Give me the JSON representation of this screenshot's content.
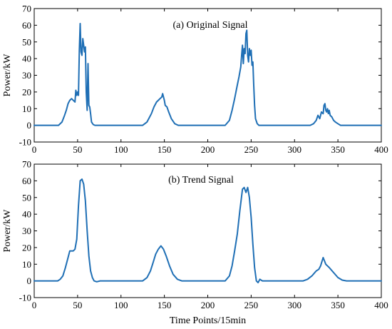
{
  "chart_data": [
    {
      "type": "line",
      "annotation": "(a) Original Signal",
      "xlabel": "",
      "ylabel": "Power/kW",
      "xlim": [
        0,
        400
      ],
      "ylim": [
        -10,
        70
      ],
      "xticks": [
        0,
        50,
        100,
        150,
        200,
        250,
        300,
        350,
        400
      ],
      "yticks": [
        -10,
        0,
        10,
        20,
        30,
        40,
        50,
        60,
        70
      ],
      "grid": false,
      "color": "#1f6fb5",
      "series": [
        {
          "x": [
            0,
            28,
            32,
            35,
            37,
            39,
            41,
            43,
            45,
            47,
            48,
            49,
            50,
            51,
            52,
            53,
            54,
            55,
            56,
            57,
            58,
            59,
            60,
            61,
            62,
            63,
            64,
            65,
            66,
            68,
            70,
            125,
            130,
            135,
            138,
            141,
            143,
            145,
            147,
            148,
            150,
            151,
            153,
            155,
            158,
            162,
            166,
            170,
            220,
            225,
            228,
            231,
            234,
            236,
            238,
            239,
            240,
            241,
            242,
            243,
            244,
            245,
            246,
            247,
            248,
            249,
            250,
            251,
            252,
            253,
            254,
            255,
            257,
            259,
            262,
            318,
            322,
            325,
            327,
            329,
            331,
            333,
            334,
            335,
            336,
            337,
            338,
            339,
            340,
            341,
            343,
            345,
            347,
            350,
            353,
            356,
            400
          ],
          "y": [
            0,
            0,
            2,
            6,
            9,
            13,
            15,
            16,
            15,
            14,
            21,
            18,
            20,
            18,
            45,
            61,
            44,
            42,
            52,
            48,
            44,
            47,
            20,
            9,
            37,
            12,
            11,
            7,
            2,
            0.5,
            0,
            0,
            2,
            7,
            11,
            14,
            15,
            16,
            17,
            19,
            15,
            12,
            11,
            8,
            4,
            1,
            0,
            0,
            0,
            3,
            9,
            16,
            24,
            29,
            35,
            42,
            48,
            37,
            46,
            43,
            55,
            57,
            42,
            38,
            46,
            42,
            45,
            36,
            38,
            24,
            12,
            4,
            1,
            0,
            0,
            0,
            1,
            3,
            6,
            4,
            8,
            7,
            12,
            13,
            9,
            8,
            10,
            7,
            9,
            6,
            5,
            3,
            2,
            1,
            0,
            0,
            0
          ]
        }
      ]
    },
    {
      "type": "line",
      "annotation": "(b) Trend Signal",
      "xlabel": "Time Points/15min",
      "ylabel": "Power/kW",
      "xlim": [
        0,
        400
      ],
      "ylim": [
        -10,
        70
      ],
      "xticks": [
        0,
        50,
        100,
        150,
        200,
        250,
        300,
        350,
        400
      ],
      "yticks": [
        -10,
        0,
        10,
        20,
        30,
        40,
        50,
        60,
        70
      ],
      "grid": false,
      "color": "#1f6fb5",
      "series": [
        {
          "x": [
            0,
            27,
            30,
            33,
            36,
            39,
            41,
            43,
            45,
            47,
            49,
            51,
            53,
            55,
            57,
            59,
            61,
            63,
            65,
            67,
            69,
            72,
            76,
            80,
            125,
            130,
            134,
            137,
            140,
            143,
            146,
            149,
            152,
            156,
            160,
            165,
            170,
            220,
            225,
            228,
            231,
            234,
            237,
            240,
            242,
            244,
            246,
            248,
            250,
            252,
            254,
            256,
            258,
            260,
            263,
            268,
            310,
            315,
            320,
            325,
            328,
            330,
            333,
            336,
            340,
            345,
            350,
            355,
            360,
            400
          ],
          "y": [
            0,
            0,
            1,
            3,
            8,
            14,
            18,
            18,
            18,
            19,
            25,
            45,
            60,
            61,
            58,
            48,
            30,
            15,
            6,
            2,
            0,
            -0.5,
            0,
            0,
            0,
            2,
            6,
            11,
            16,
            19,
            21,
            19,
            15,
            9,
            4,
            1,
            0,
            0,
            3,
            9,
            18,
            28,
            42,
            55,
            56,
            53,
            56,
            50,
            38,
            22,
            8,
            0,
            -1,
            1,
            0,
            0,
            0,
            1,
            3,
            6,
            7,
            9,
            14,
            10,
            8,
            5,
            2,
            0.5,
            0,
            0
          ]
        }
      ]
    }
  ]
}
